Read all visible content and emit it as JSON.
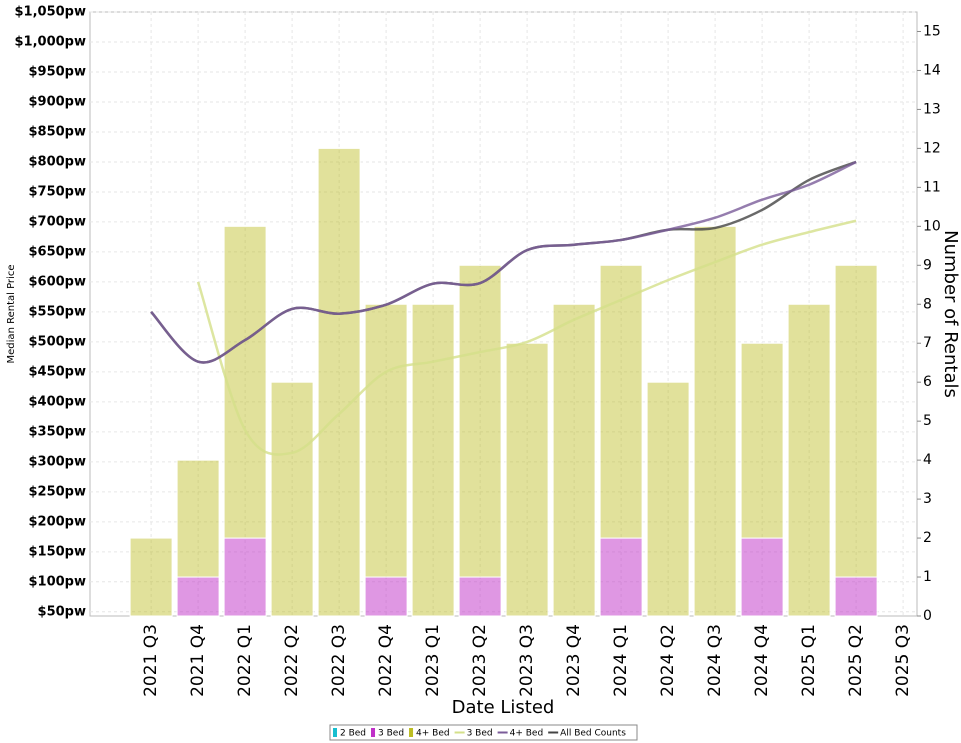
{
  "chart_data": {
    "type": "bar",
    "x_label": "Date Listed",
    "y_label": "Median Rental Price",
    "y2_label": "Number of Rentals",
    "categories": [
      "2021 Q3",
      "2021 Q4",
      "2022 Q1",
      "2022 Q2",
      "2022 Q3",
      "2022 Q4",
      "2023 Q1",
      "2023 Q2",
      "2023 Q3",
      "2023 Q4",
      "2024 Q1",
      "2024 Q2",
      "2024 Q3",
      "2024 Q4",
      "2025 Q1",
      "2025 Q2",
      "2025 Q3"
    ],
    "ylim": [
      43,
      1050
    ],
    "yticks": [
      {
        "value": 50,
        "label": "$50pw"
      },
      {
        "value": 100,
        "label": "$100pw"
      },
      {
        "value": 150,
        "label": "$150pw"
      },
      {
        "value": 200,
        "label": "$200pw"
      },
      {
        "value": 250,
        "label": "$250pw"
      },
      {
        "value": 300,
        "label": "$300pw"
      },
      {
        "value": 350,
        "label": "$350pw"
      },
      {
        "value": 400,
        "label": "$400pw"
      },
      {
        "value": 450,
        "label": "$450pw"
      },
      {
        "value": 500,
        "label": "$500pw"
      },
      {
        "value": 550,
        "label": "$550pw"
      },
      {
        "value": 600,
        "label": "$600pw"
      },
      {
        "value": 650,
        "label": "$650pw"
      },
      {
        "value": 700,
        "label": "$700pw"
      },
      {
        "value": 750,
        "label": "$750pw"
      },
      {
        "value": 800,
        "label": "$800pw"
      },
      {
        "value": 850,
        "label": "$850pw"
      },
      {
        "value": 900,
        "label": "$900pw"
      },
      {
        "value": 950,
        "label": "$950pw"
      },
      {
        "value": 1000,
        "label": "$1,000pw"
      },
      {
        "value": 1050,
        "label": "$1,050pw"
      }
    ],
    "y2lim": [
      0,
      15.5
    ],
    "y2ticks": [
      0,
      1,
      2,
      3,
      4,
      5,
      6,
      7,
      8,
      9,
      10,
      11,
      12,
      13,
      14,
      15
    ],
    "grid": true,
    "series": [
      {
        "name": "2 Bed",
        "type": "bar",
        "axis": "y2",
        "color": "#17becf",
        "values": [
          0,
          0,
          0,
          0,
          0,
          0,
          0,
          0,
          0,
          0,
          0,
          0,
          0,
          0,
          0,
          0,
          null
        ]
      },
      {
        "name": "3 Bed",
        "type": "bar",
        "axis": "y2",
        "color": "#c030c8",
        "values": [
          0,
          1,
          2,
          0,
          0,
          1,
          0,
          1,
          0,
          0,
          2,
          0,
          0,
          2,
          0,
          1,
          null
        ]
      },
      {
        "name": "4+ Bed",
        "type": "bar",
        "axis": "y2",
        "color": "#bcbd22",
        "values": [
          2,
          3,
          8,
          6,
          12,
          7,
          8,
          8,
          7,
          8,
          7,
          6,
          10,
          5,
          8,
          8,
          null
        ]
      },
      {
        "name": "3 Bed",
        "type": "line",
        "axis": "y",
        "color": "#d4e08a",
        "values": [
          null,
          600,
          353,
          315,
          380,
          450,
          467,
          483,
          500,
          537,
          570,
          603,
          633,
          662,
          683,
          702,
          null
        ]
      },
      {
        "name": "4+ Bed",
        "type": "line",
        "axis": "y",
        "color": "#7b5c9a",
        "values": [
          550,
          467,
          503,
          555,
          547,
          562,
          597,
          598,
          653,
          662,
          670,
          687,
          707,
          737,
          762,
          800,
          null
        ]
      },
      {
        "name": "All Bed Counts",
        "type": "line",
        "axis": "y",
        "color": "#444444",
        "values": [
          550,
          467,
          503,
          555,
          547,
          562,
          597,
          598,
          653,
          662,
          670,
          687,
          690,
          720,
          770,
          800,
          null
        ]
      }
    ]
  }
}
